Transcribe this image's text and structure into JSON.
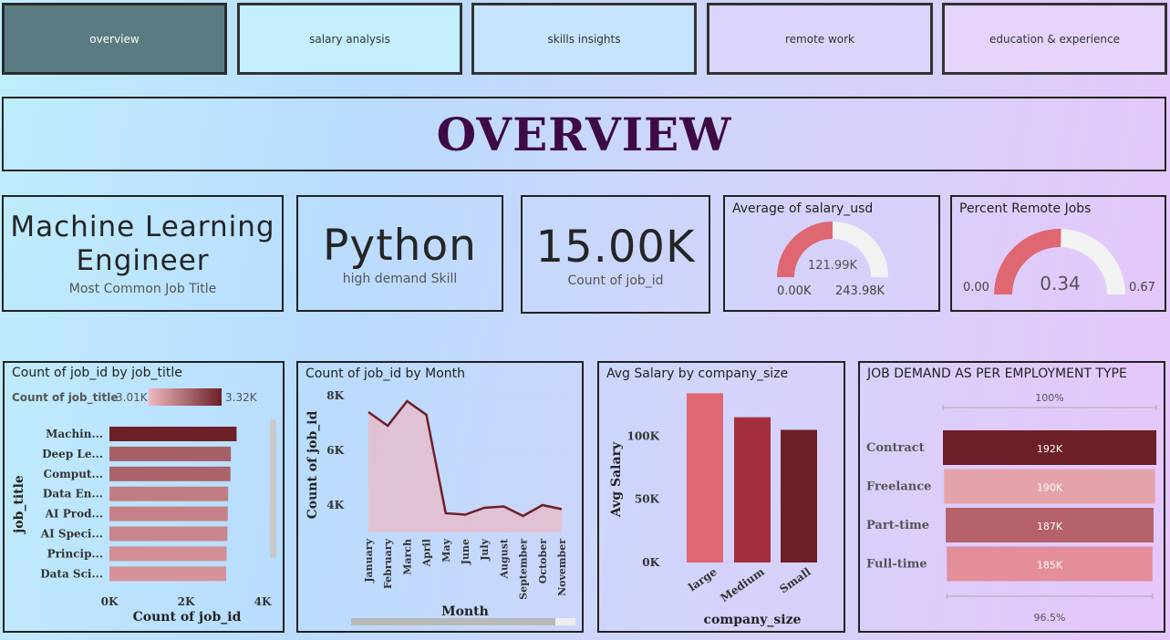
{
  "tabs": [
    {
      "label": "overview",
      "active": true
    },
    {
      "label": "salary analysis",
      "active": false
    },
    {
      "label": "skills insights",
      "active": false
    },
    {
      "label": "remote work",
      "active": false
    },
    {
      "label": "education & experience",
      "active": false
    }
  ],
  "page_title": "OVERVIEW",
  "kpis": {
    "job_title": {
      "value_line1": "Machine Learning",
      "value_line2": "Engineer",
      "label": "Most Common Job Title"
    },
    "skill": {
      "value": "Python",
      "label": "high demand Skill"
    },
    "count": {
      "value": "15.00K",
      "label": "Count of job_id"
    }
  },
  "gauges": {
    "salary": {
      "title": "Average of salary_usd",
      "value_label": "121.99K",
      "min_label": "0.00K",
      "max_label": "243.98K",
      "fraction": 0.5
    },
    "remote": {
      "title": "Percent Remote Jobs",
      "value_label": "0.34",
      "min_label": "0.00",
      "max_label": "0.67",
      "fraction": 0.507
    }
  },
  "colors": {
    "dark_red": "#6d1f27",
    "mid_red": "#a3303c",
    "pink_red": "#de6772",
    "light_pink": "#e4a3aa",
    "gauge_track": "#f2f2f2",
    "title_purple": "#3d0a45"
  },
  "chart_data": [
    {
      "type": "bar",
      "orientation": "horizontal",
      "title": "Count of job_id by job_title",
      "legend_title": "Count of job_title",
      "legend_min": "3.01K",
      "legend_max": "3.32K",
      "categories": [
        "Machin...",
        "Deep Le...",
        "Comput...",
        "Data En...",
        "AI Prod...",
        "AI Speci...",
        "Princip...",
        "Data Sci..."
      ],
      "values": [
        3320,
        3170,
        3160,
        3100,
        3090,
        3080,
        3060,
        3050
      ],
      "xlabel": "Count of job_id",
      "ylabel": "job_title",
      "xticks": [
        "0K",
        "2K",
        "4K"
      ],
      "xlim": [
        0,
        4000
      ]
    },
    {
      "type": "area",
      "title": "Count of job_id by Month",
      "categories": [
        "January",
        "February",
        "March",
        "April",
        "May",
        "June",
        "July",
        "August",
        "September",
        "October",
        "November"
      ],
      "values": [
        7400,
        6900,
        7800,
        7300,
        3700,
        3650,
        3900,
        3950,
        3600,
        4000,
        3850
      ],
      "xlabel": "Month",
      "ylabel": "Count of job_id",
      "yticks": [
        "4K",
        "6K",
        "8K"
      ],
      "ylim": [
        3000,
        8000
      ]
    },
    {
      "type": "bar",
      "title": "Avg Salary by company_size",
      "categories": [
        "large",
        "Medium",
        "Small"
      ],
      "values": [
        134000,
        115000,
        105000
      ],
      "xlabel": "company_size",
      "ylabel": "Avg Salary",
      "yticks": [
        "0K",
        "50K",
        "100K"
      ],
      "ylim": [
        0,
        140000
      ]
    },
    {
      "type": "bar",
      "orientation": "horizontal",
      "title": "JOB DEMAND AS PER EMPLOYMENT TYPE",
      "categories": [
        "Contract",
        "Freelance",
        "Part-time",
        "Full-time"
      ],
      "values": [
        192000,
        190000,
        187000,
        185000
      ],
      "value_labels": [
        "192K",
        "190K",
        "187K",
        "185K"
      ],
      "top_label": "100%",
      "bottom_label": "96.5%"
    }
  ]
}
